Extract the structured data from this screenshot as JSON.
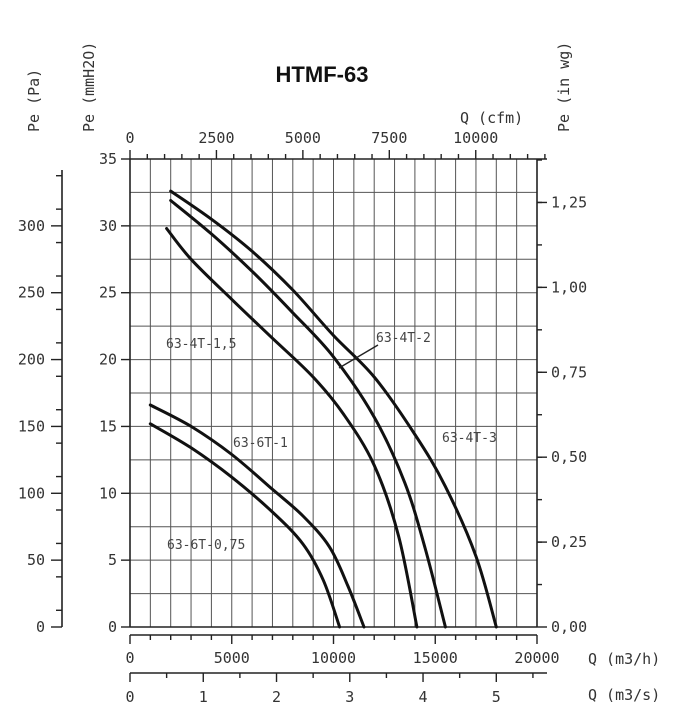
{
  "chart_data": {
    "type": "line",
    "title": "HTMF-63",
    "grid": true,
    "axes": {
      "left_outer": {
        "label": "Pe (Pa)",
        "range": [
          0,
          350
        ],
        "ticks": [
          "0",
          "50",
          "100",
          "150",
          "200",
          "250",
          "300"
        ]
      },
      "left_inner": {
        "label": "Pe (mmH2O)",
        "range": [
          0,
          35
        ],
        "ticks": [
          "0",
          "5",
          "10",
          "15",
          "20",
          "25",
          "30",
          "35"
        ]
      },
      "right": {
        "label": "Pe (in wg)",
        "ticks": [
          "0,00",
          "0,25",
          "0,50",
          "0,75",
          "1,00",
          "1,25"
        ]
      },
      "top": {
        "label": "Q (cfm)",
        "ticks": [
          "0",
          "2500",
          "5000",
          "7500",
          "10000"
        ]
      },
      "bottom_main": {
        "label": "Q (m3/h)",
        "range": [
          0,
          20000
        ],
        "ticks": [
          "0",
          "5000",
          "10000",
          "15000",
          "20000"
        ]
      },
      "bottom_second": {
        "label": "Q (m3/s)",
        "ticks": [
          "0",
          "1",
          "2",
          "3",
          "4",
          "5"
        ]
      }
    },
    "x_unit": "m3/h",
    "y_unit": "mmH2O",
    "series": [
      {
        "name": "63-4T-3",
        "points": [
          [
            2000,
            32.6
          ],
          [
            4000,
            30.5
          ],
          [
            6000,
            28.1
          ],
          [
            8000,
            25.2
          ],
          [
            10000,
            21.8
          ],
          [
            12000,
            18.7
          ],
          [
            14000,
            14.4
          ],
          [
            15500,
            10.5
          ],
          [
            17000,
            5.3
          ],
          [
            18000,
            0
          ]
        ]
      },
      {
        "name": "63-4T-2",
        "points": [
          [
            2000,
            31.9
          ],
          [
            4000,
            29.4
          ],
          [
            6000,
            26.6
          ],
          [
            8000,
            23.5
          ],
          [
            10000,
            20.2
          ],
          [
            12000,
            15.7
          ],
          [
            13500,
            10.8
          ],
          [
            14500,
            5.9
          ],
          [
            15500,
            0
          ]
        ]
      },
      {
        "name": "63-4T-1,5",
        "points": [
          [
            1800,
            29.8
          ],
          [
            3000,
            27.5
          ],
          [
            5000,
            24.5
          ],
          [
            7000,
            21.6
          ],
          [
            9000,
            18.7
          ],
          [
            10500,
            15.9
          ],
          [
            12000,
            12.1
          ],
          [
            13200,
            6.8
          ],
          [
            14100,
            0
          ]
        ]
      },
      {
        "name": "63-6T-1",
        "points": [
          [
            1000,
            16.6
          ],
          [
            3000,
            15.0
          ],
          [
            5000,
            12.9
          ],
          [
            7000,
            10.3
          ],
          [
            8500,
            8.3
          ],
          [
            9800,
            6.0
          ],
          [
            10700,
            3.1
          ],
          [
            11500,
            0
          ]
        ]
      },
      {
        "name": "63-6T-0,75",
        "points": [
          [
            1000,
            15.2
          ],
          [
            3000,
            13.4
          ],
          [
            5000,
            11.2
          ],
          [
            7000,
            8.6
          ],
          [
            8500,
            6.2
          ],
          [
            9500,
            3.5
          ],
          [
            10300,
            0
          ]
        ]
      }
    ]
  }
}
